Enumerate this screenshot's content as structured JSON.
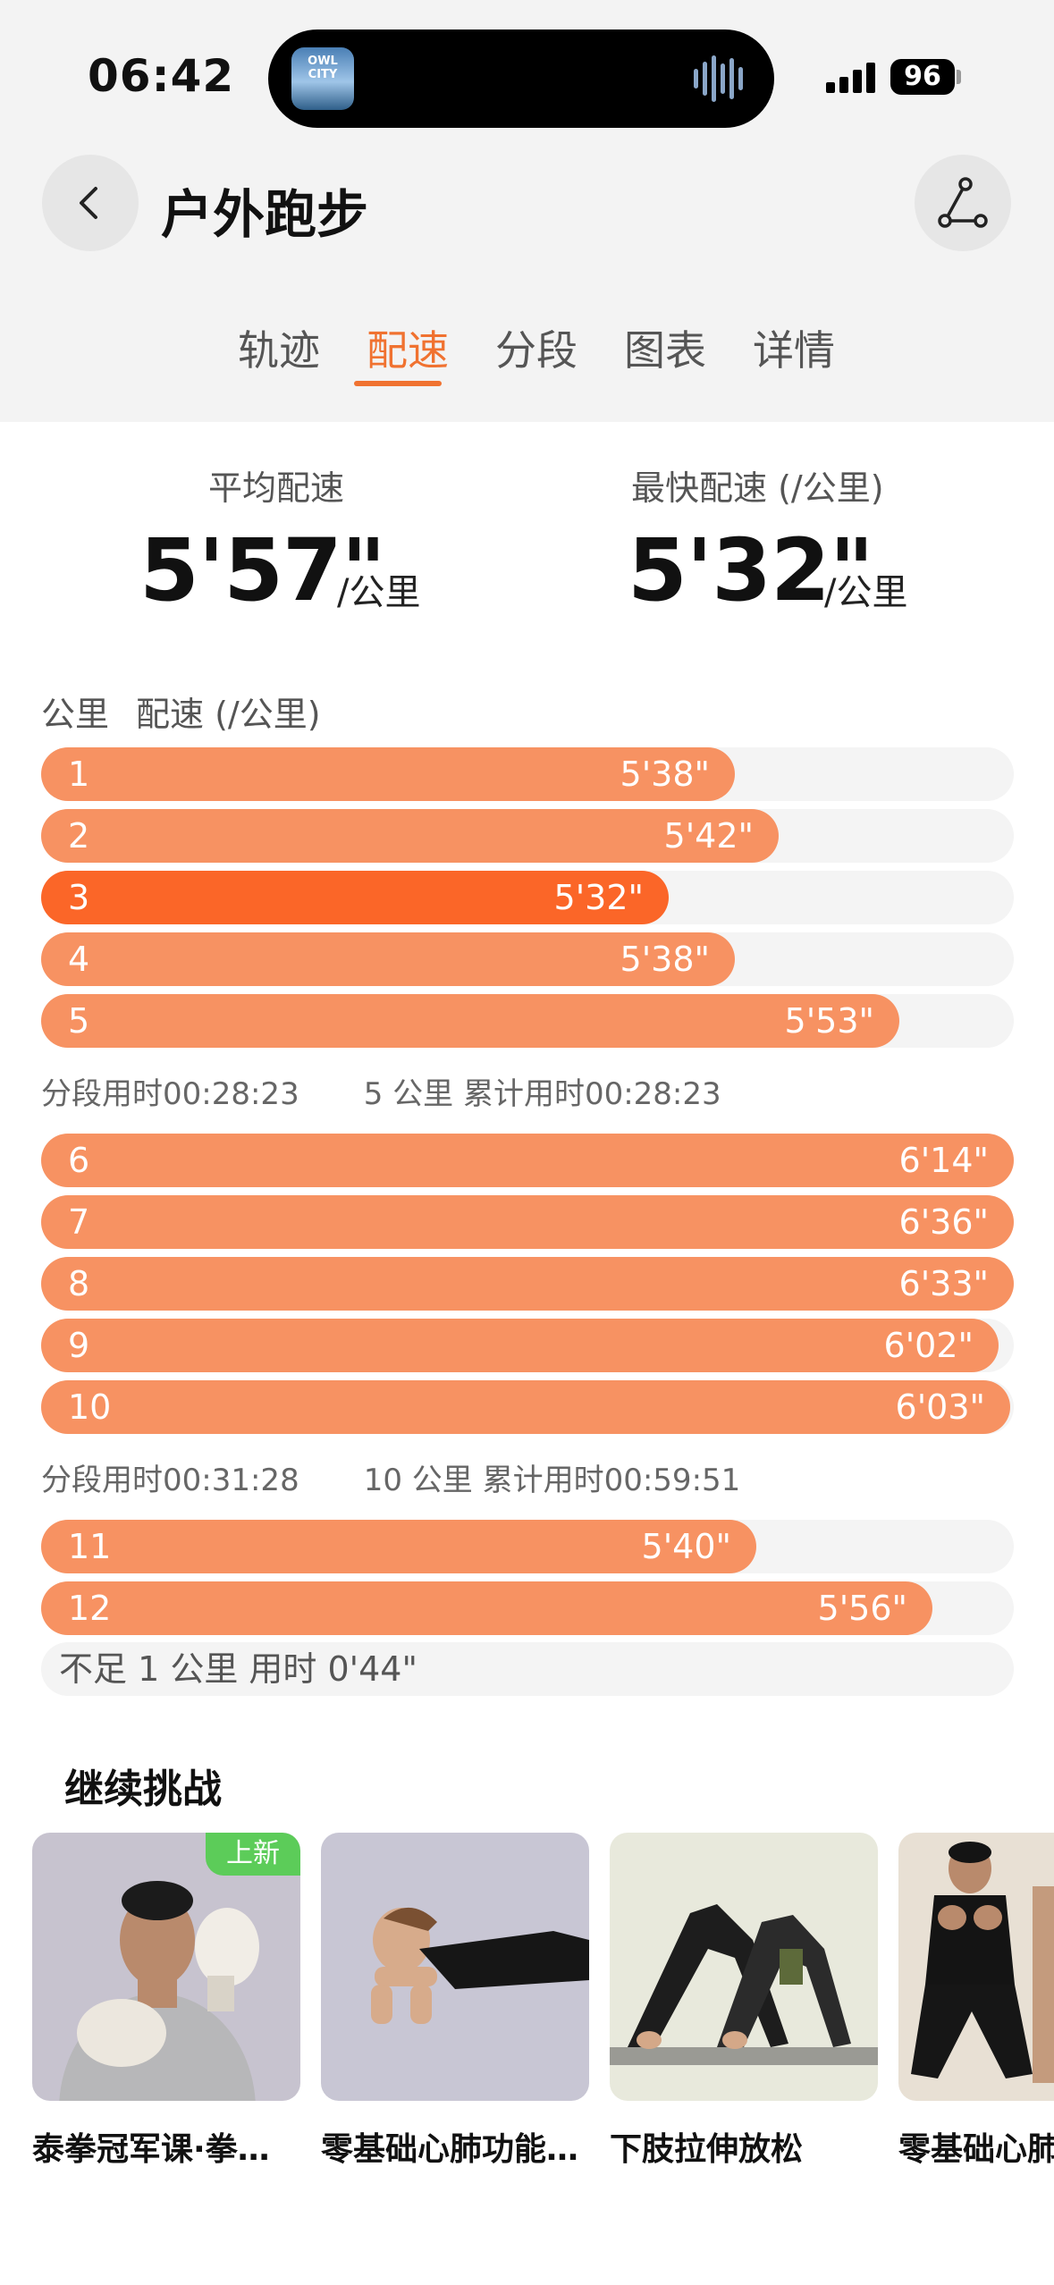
{
  "status": {
    "time": "06:42",
    "album_text": "OWL CITY",
    "battery": "96"
  },
  "header": {
    "title": "户外跑步"
  },
  "tabs": [
    {
      "label": "轨迹"
    },
    {
      "label": "配速"
    },
    {
      "label": "分段"
    },
    {
      "label": "图表"
    },
    {
      "label": "详情"
    }
  ],
  "active_tab": "配速",
  "summary": {
    "avg_label": "平均配速",
    "avg_value": "5'57\"",
    "avg_unit": "/公里",
    "best_label": "最快配速 (/公里)",
    "best_value": "5'32\"",
    "best_unit": "/公里"
  },
  "list_header": {
    "km": "公里",
    "pace": "配速 (/公里)"
  },
  "splits": [
    {
      "km": "1",
      "pace": "5'38\"",
      "seconds": 338
    },
    {
      "km": "2",
      "pace": "5'42\"",
      "seconds": 342
    },
    {
      "km": "3",
      "pace": "5'32\"",
      "seconds": 332,
      "fastest": true
    },
    {
      "km": "4",
      "pace": "5'38\"",
      "seconds": 338
    },
    {
      "km": "5",
      "pace": "5'53\"",
      "seconds": 353
    },
    {
      "km": "6",
      "pace": "6'14\"",
      "seconds": 374
    },
    {
      "km": "7",
      "pace": "6'36\"",
      "seconds": 396
    },
    {
      "km": "8",
      "pace": "6'33\"",
      "seconds": 393
    },
    {
      "km": "9",
      "pace": "6'02\"",
      "seconds": 362
    },
    {
      "km": "10",
      "pace": "6'03\"",
      "seconds": 363
    },
    {
      "km": "11",
      "pace": "5'40\"",
      "seconds": 340
    },
    {
      "km": "12",
      "pace": "5'56\"",
      "seconds": 356
    }
  ],
  "segment_summaries": [
    {
      "segment_time": "分段用时00:28:23",
      "cumulative": "5 公里 累计用时00:28:23"
    },
    {
      "segment_time": "分段用时00:31:28",
      "cumulative": "10 公里 累计用时00:59:51"
    }
  ],
  "partial": {
    "text": "不足 1 公里 用时 0'44\""
  },
  "challenge": {
    "title": "继续挑战",
    "badge": "上新",
    "cards": [
      {
        "name": "泰拳冠军课·拳…",
        "icon": "boxing-photo"
      },
      {
        "name": "零基础心肺功能…",
        "icon": "plank-photo"
      },
      {
        "name": "下肢拉伸放松",
        "icon": "stretch-photo"
      },
      {
        "name": "零基础心肺",
        "icon": "squat-photo"
      }
    ]
  },
  "colors": {
    "accent": "#f07230",
    "bar": "#f79262",
    "bar_fastest": "#fb6628",
    "track": "#f4f4f4",
    "new_badge": "#5ccc59"
  }
}
